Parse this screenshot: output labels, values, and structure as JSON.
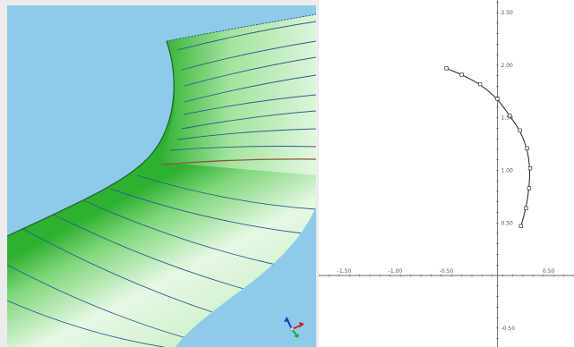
{
  "colors": {
    "viewport_background": "#8ecbea",
    "surface_light": "#e6f8e4",
    "surface_green": "#2eb030",
    "isoline": "#2b5d8f",
    "seam": "#8a5a3a",
    "plot_background": "#ffffff",
    "axis": "#555555",
    "curve": "#222222"
  },
  "icons": {
    "orientation_triad": "xyz-axes-icon"
  },
  "plot": {
    "x_ticks": [
      {
        "value": -1.5,
        "label": "-1.50"
      },
      {
        "value": -1.0,
        "label": "-1.00"
      },
      {
        "value": -0.5,
        "label": "-0.50"
      },
      {
        "value": 0.5,
        "label": "0.50"
      }
    ],
    "y_ticks": [
      {
        "value": 2.5,
        "label": "2.50"
      },
      {
        "value": 2.0,
        "label": "2.00"
      },
      {
        "value": 1.5,
        "label": "1.50"
      },
      {
        "value": 1.0,
        "label": "1.00"
      },
      {
        "value": 0.5,
        "label": "0.50"
      },
      {
        "value": -0.5,
        "label": "-0.50"
      }
    ]
  },
  "chart_data": {
    "type": "line",
    "title": "",
    "xlabel": "",
    "ylabel": "",
    "xlim": [
      -1.75,
      0.75
    ],
    "ylim": [
      -0.68,
      2.62
    ],
    "grid": false,
    "series": [
      {
        "x": [
          -0.5,
          -0.35,
          -0.17,
          0.0,
          0.12,
          0.22,
          0.29,
          0.32,
          0.31,
          0.28,
          0.23
        ],
        "y": [
          1.97,
          1.91,
          1.82,
          1.68,
          1.52,
          1.38,
          1.21,
          1.02,
          0.83,
          0.64,
          0.47
        ]
      }
    ]
  }
}
